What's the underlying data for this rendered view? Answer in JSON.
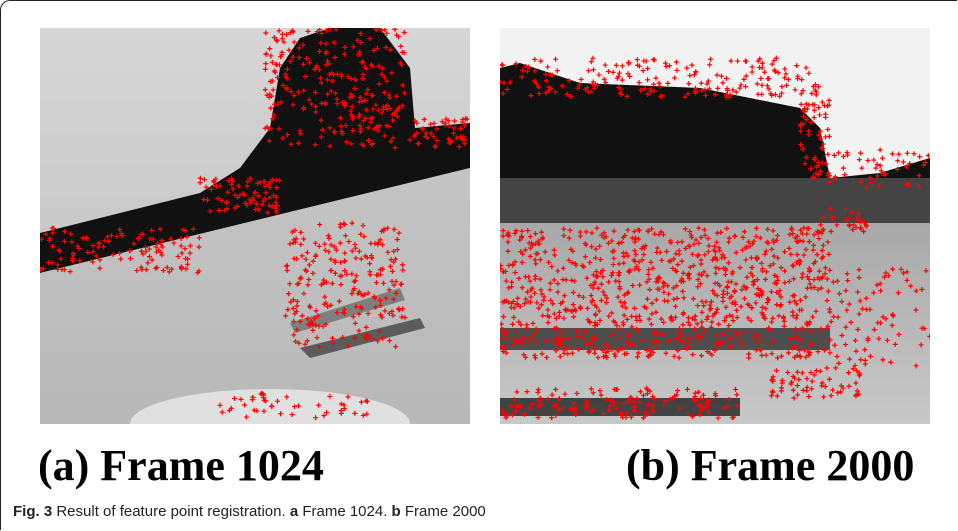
{
  "panels": [
    {
      "label": "(a) Frame 1024"
    },
    {
      "label": "(b) Frame 2000"
    }
  ],
  "caption": {
    "figure": "Fig. 3",
    "text": "Result of feature point registration.",
    "subcaptions": [
      {
        "letter": "a",
        "text": "Frame 1024."
      },
      {
        "letter": "b",
        "text": "Frame 2000"
      }
    ]
  }
}
